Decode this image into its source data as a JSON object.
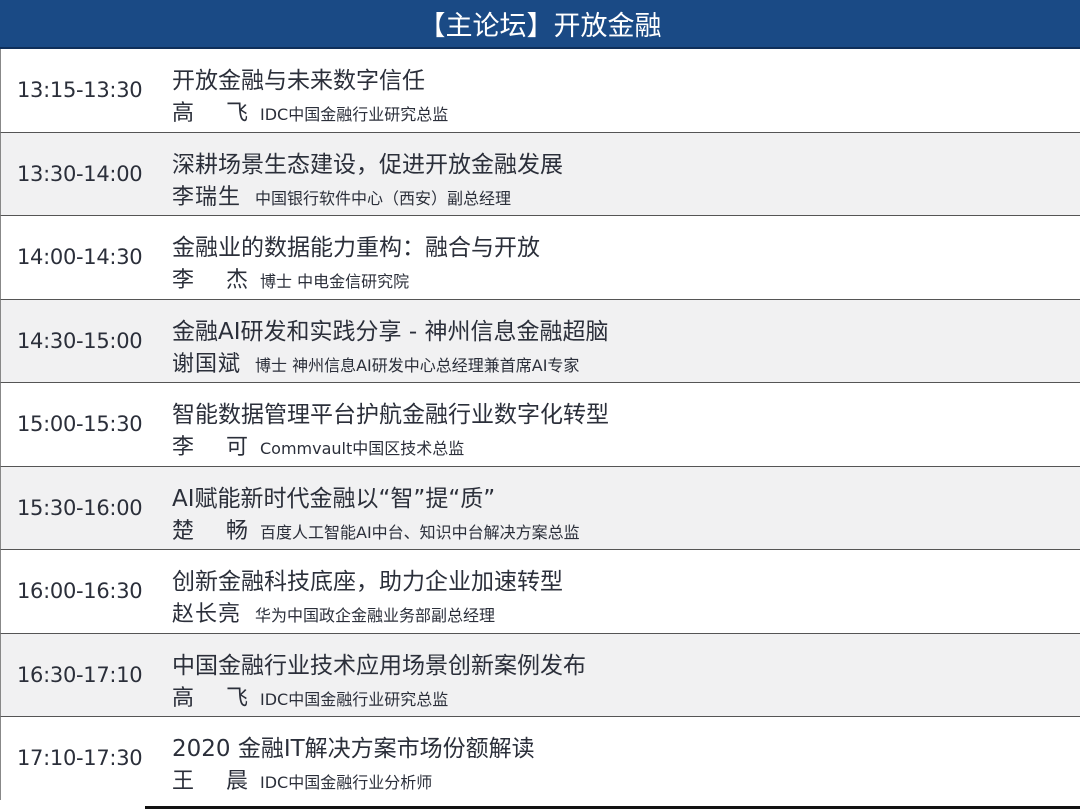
{
  "header": {
    "title": "【主论坛】开放金融"
  },
  "colors": {
    "header_bg": "#1a4a85",
    "alt_row_bg": "#f1f1f2"
  },
  "sessions": [
    {
      "time": "13:15-13:30",
      "title": "开放金融与未来数字信任",
      "speaker": "高　飞",
      "role": "IDC中国金融行业研究总监"
    },
    {
      "time": "13:30-14:00",
      "title": "深耕场景生态建设，促进开放金融发展",
      "speaker": "李瑞生",
      "role": "中国银行软件中心（西安）副总经理"
    },
    {
      "time": "14:00-14:30",
      "title": "金融业的数据能力重构：融合与开放",
      "speaker": "李　杰",
      "role": "博士 中电金信研究院"
    },
    {
      "time": "14:30-15:00",
      "title": "金融AI研发和实践分享 - 神州信息金融超脑",
      "speaker": "谢国斌",
      "role": "博士 神州信息AI研发中心总经理兼首席AI专家"
    },
    {
      "time": "15:00-15:30",
      "title": "智能数据管理平台护航金融行业数字化转型",
      "speaker": "李　可",
      "role": "Commvault中国区技术总监"
    },
    {
      "time": "15:30-16:00",
      "title": "AI赋能新时代金融以“智”提“质”",
      "speaker": "楚　畅",
      "role": "百度人工智能AI中台、知识中台解决方案总监"
    },
    {
      "time": "16:00-16:30",
      "title": "创新金融科技底座，助力企业加速转型",
      "speaker": "赵长亮",
      "role": "华为中国政企金融业务部副总经理"
    },
    {
      "time": "16:30-17:10",
      "title": "中国金融行业技术应用场景创新案例发布",
      "speaker": "高　飞",
      "role": "IDC中国金融行业研究总监"
    },
    {
      "time": "17:10-17:30",
      "title": "2020 金融IT解决方案市场份额解读",
      "speaker": "王　晨",
      "role": "IDC中国金融行业分析师"
    }
  ]
}
